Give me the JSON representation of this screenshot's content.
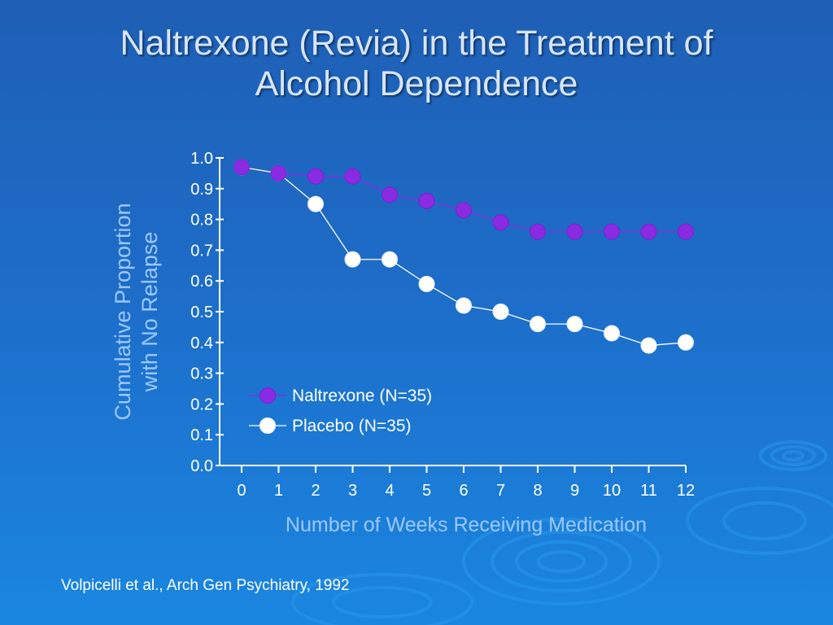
{
  "slide": {
    "title_line1": "Naltrexone (Revia) in the Treatment of",
    "title_line2": "Alcohol Dependence",
    "citation": "Volpicelli et al., Arch Gen Psychiatry, 1992"
  },
  "colors": {
    "background": "#1d6cc8",
    "title": "#d7e6ff",
    "axis_label": "#9cc8ff",
    "axes": "#ffffff",
    "naltrexone": "#8a2be2",
    "placebo": "#ffffff"
  },
  "chart_data": {
    "type": "line",
    "xlabel": "Number of Weeks Receiving Medication",
    "ylabel_lines": [
      "Cumulative Proportion",
      "with No Relapse"
    ],
    "x": [
      0,
      1,
      2,
      3,
      4,
      5,
      6,
      7,
      8,
      9,
      10,
      11,
      12
    ],
    "x_tick_labels": [
      "0",
      "1",
      "2",
      "3",
      "4",
      "5",
      "6",
      "7",
      "8",
      "9",
      "10",
      "11",
      "12"
    ],
    "y_tick_labels": [
      "0.0",
      "0.1",
      "0.2",
      "0.3",
      "0.4",
      "0.5",
      "0.6",
      "0.7",
      "0.8",
      "0.9",
      "1.0"
    ],
    "xlim": [
      0,
      12
    ],
    "ylim": [
      0,
      1.0
    ],
    "grid": false,
    "legend_position": "lower-left",
    "series": [
      {
        "name": "Naltrexone (N=35)",
        "color": "#8a2be2",
        "values": [
          0.97,
          0.95,
          0.94,
          0.94,
          0.88,
          0.86,
          0.83,
          0.79,
          0.76,
          0.76,
          0.76,
          0.76,
          0.76
        ]
      },
      {
        "name": "Placebo (N=35)",
        "color": "#ffffff",
        "values": [
          0.97,
          0.95,
          0.85,
          0.67,
          0.67,
          0.59,
          0.52,
          0.5,
          0.46,
          0.46,
          0.43,
          0.39,
          0.4
        ]
      }
    ]
  }
}
